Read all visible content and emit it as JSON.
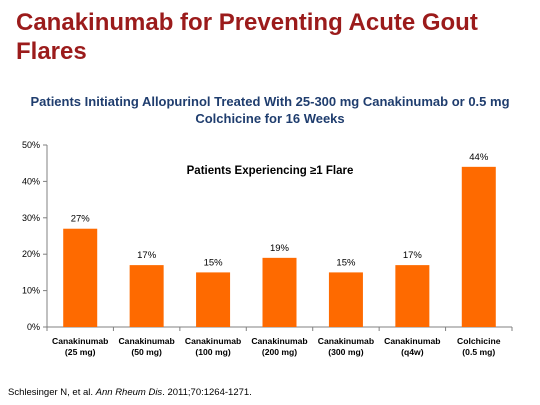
{
  "slide": {
    "title": "Canakinumab for Preventing Acute Gout Flares"
  },
  "citation": {
    "authors": "Schlesinger N, et al.",
    "journal": "Ann Rheum Dis",
    "details": ". 2011;70:1264-1271."
  },
  "colors": {
    "bar": "#fe6a00",
    "title": "#9b1b1b",
    "chart_title": "#1f3d6e"
  },
  "chart_data": {
    "type": "bar",
    "title": "Patients Initiating Allopurinol Treated With 25-300 mg Canakinumab or 0.5 mg Colchicine for 16 Weeks",
    "subtitle": "Patients Experiencing ≥1 Flare",
    "categories": [
      [
        "Canakinumab",
        "(25 mg)"
      ],
      [
        "Canakinumab",
        "(50 mg)"
      ],
      [
        "Canakinumab",
        "(100 mg)"
      ],
      [
        "Canakinumab",
        "(200 mg)"
      ],
      [
        "Canakinumab",
        "(300 mg)"
      ],
      [
        "Canakinumab",
        "(q4w)"
      ],
      [
        "Colchicine",
        "(0.5 mg)"
      ]
    ],
    "values": [
      27,
      17,
      15,
      19,
      15,
      17,
      44
    ],
    "value_labels": [
      "27%",
      "17%",
      "15%",
      "19%",
      "15%",
      "17%",
      "44%"
    ],
    "yticks": [
      "0%",
      "10%",
      "20%",
      "30%",
      "40%",
      "50%"
    ],
    "ylim": [
      0,
      50
    ],
    "grid": false,
    "xlabel": "",
    "ylabel": ""
  }
}
